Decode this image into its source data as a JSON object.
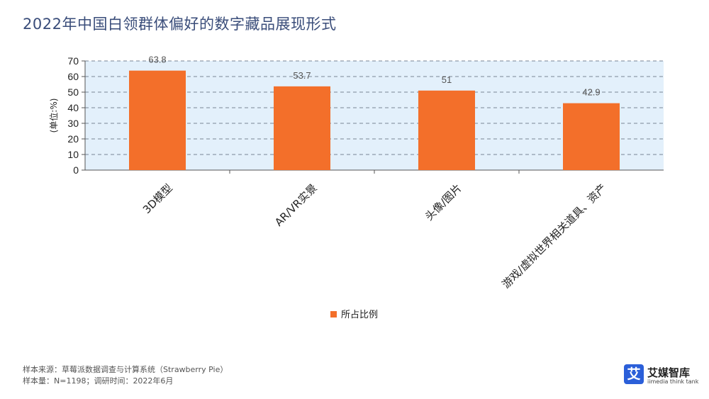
{
  "page": {
    "title": "2022年中国白领群体偏好的数字藏品展现形式",
    "source_line1": "样本来源：草莓派数据调查与计算系统（Strawberry Pie）",
    "source_line2": "样本量：N=1198；调研时间：2022年6月"
  },
  "logo": {
    "mark": "艾",
    "name": "艾媒智库",
    "sub": "iimedia think tank",
    "color": "#2b5fd9"
  },
  "colors": {
    "bar": "#f36f2a",
    "plot_bg": "#e3f0fb",
    "grid": "#7a8696"
  },
  "chart_data": {
    "type": "bar",
    "title": "2022年中国白领群体偏好的数字藏品展现形式",
    "categories": [
      "3D模型",
      "AR/VR实景",
      "头像/图片",
      "游戏/虚拟世界相关道具、资产"
    ],
    "series": [
      {
        "name": "所占比例",
        "values": [
          63.8,
          53.7,
          51,
          42.9
        ]
      }
    ],
    "value_labels": [
      "63.8",
      "53.7",
      "51",
      "42.9"
    ],
    "ylabel": "(单位:%)",
    "ylim": [
      0,
      70
    ],
    "yticks": [
      0,
      10,
      20,
      30,
      40,
      50,
      60,
      70
    ],
    "grid": true,
    "legend_position": "bottom-center"
  }
}
